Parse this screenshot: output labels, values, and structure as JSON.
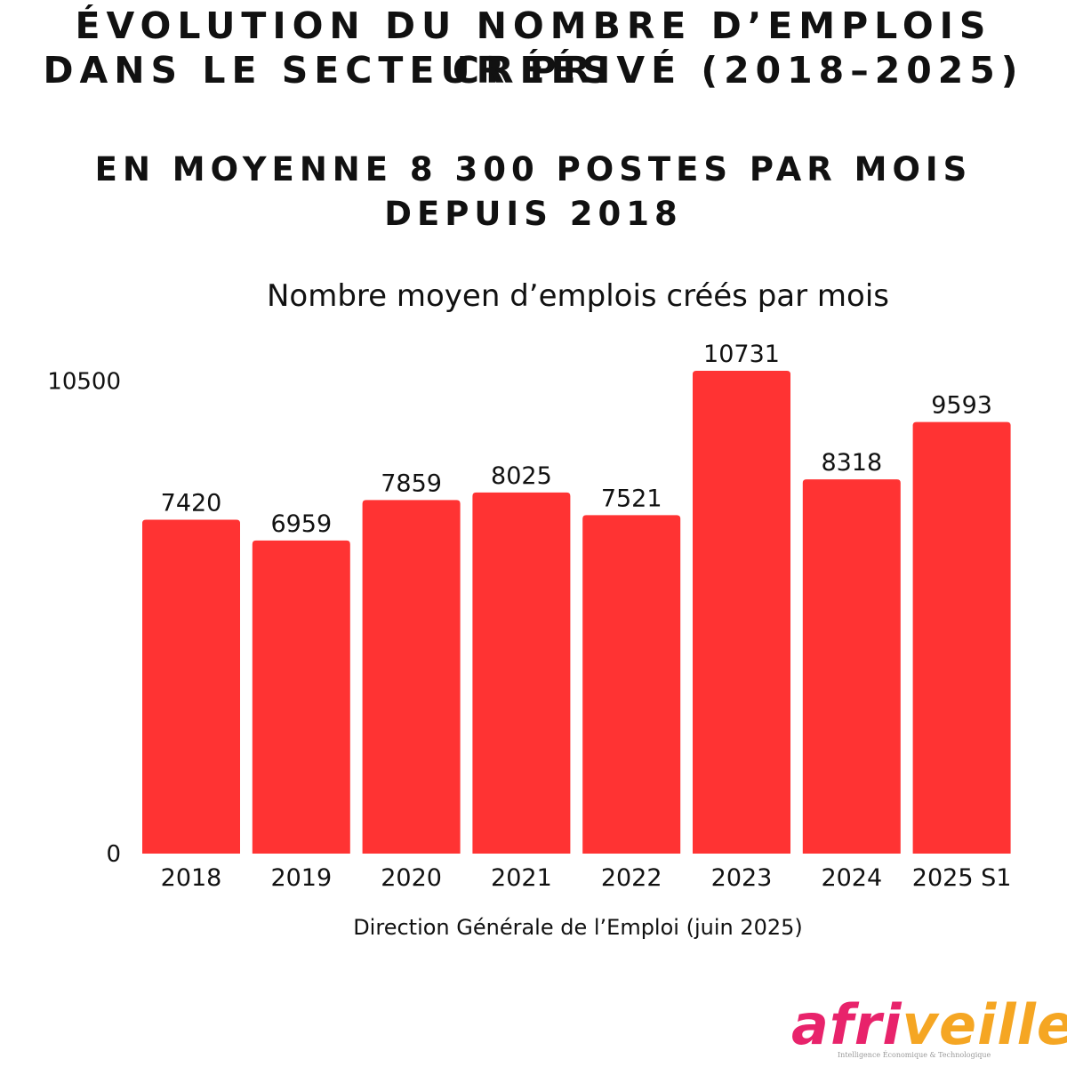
{
  "header": {
    "title_line1": "ÉVOLUTION DU NOMBRE D’EMPLOIS CRÉÉS",
    "title_line2": "DANS LE SECTEUR PRIVÉ (2018–2025)",
    "subtitle_line1": "EN MOYENNE 8 300 POSTES PAR MOIS",
    "subtitle_line2": "DEPUIS 2018"
  },
  "source": "Direction Générale de l’Emploi (juin 2025)",
  "logo": {
    "part1": "afri",
    "part2": "veille",
    "tagline": "Intelligence Économique & Technologique"
  },
  "colors": {
    "bar": "#ff3333",
    "text": "#111111",
    "logo_pink": "#e8236b",
    "logo_orange": "#f5a623"
  },
  "chart_data": {
    "type": "bar",
    "title": "Nombre moyen d’emplois créés par mois",
    "categories": [
      "2018",
      "2019",
      "2020",
      "2021",
      "2022",
      "2023",
      "2024",
      "2025 S1"
    ],
    "values": [
      7420,
      6959,
      7859,
      8025,
      7521,
      10731,
      8318,
      9593
    ],
    "data_labels": [
      "7420",
      "6959",
      "7859",
      "8025",
      "7521",
      "10731",
      "8318",
      "9593"
    ],
    "ytick_labels": [
      "0",
      "10500"
    ],
    "yticks": [
      0,
      10500
    ],
    "ylim": [
      0,
      10731
    ],
    "grid": false,
    "legend": "none"
  }
}
